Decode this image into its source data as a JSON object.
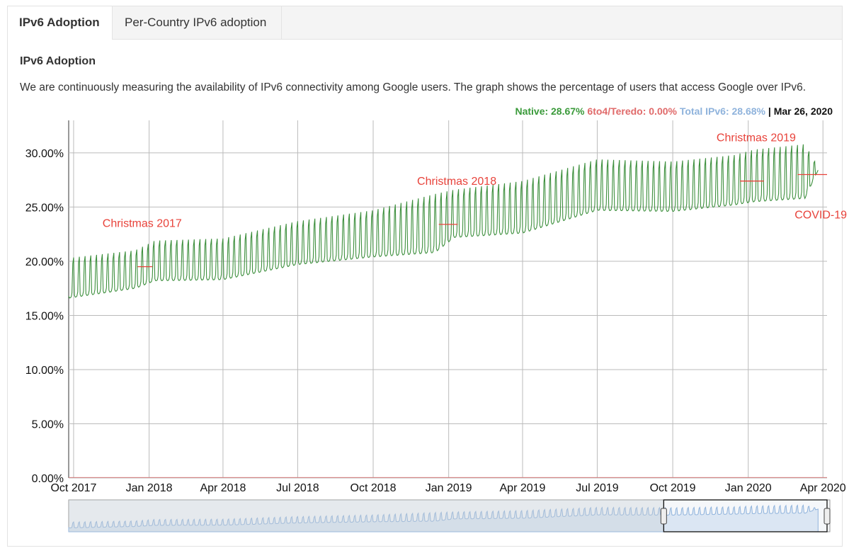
{
  "tabs": [
    {
      "label": "IPv6 Adoption",
      "active": true
    },
    {
      "label": "Per-Country IPv6 adoption",
      "active": false
    }
  ],
  "section_title": "IPv6 Adoption",
  "description": "We are continuously measuring the availability of IPv6 connectivity among Google users. The graph shows the percentage of users that access Google over IPv6.",
  "legend": {
    "native": "Native: 28.67%",
    "teredo": "6to4/Teredo: 0.00%",
    "total": "Total IPv6: 28.68%",
    "separator": "|",
    "date": "Mar 26, 2020"
  },
  "colors": {
    "native_line": "#3d8f3d",
    "annotation": "#e8423a",
    "total_overview": "#8fb3dc",
    "grid": "#bbbbbb"
  },
  "chart_data": {
    "type": "line",
    "title": "",
    "xlabel": "",
    "ylabel": "",
    "x_range": [
      "2017-09-25",
      "2020-04-06"
    ],
    "ylim": [
      0,
      33
    ],
    "y_ticks": [
      0,
      5,
      10,
      15,
      20,
      25,
      30
    ],
    "y_tick_labels": [
      "0.00%",
      "5.00%",
      "10.00%",
      "15.00%",
      "20.00%",
      "25.00%",
      "30.00%"
    ],
    "x_ticks": [
      "2017-10-01",
      "2018-01-01",
      "2018-04-01",
      "2018-07-01",
      "2018-10-01",
      "2019-01-01",
      "2019-04-01",
      "2019-07-01",
      "2019-10-01",
      "2020-01-01",
      "2020-04-01"
    ],
    "x_tick_labels": [
      "Oct 2017",
      "Jan 2018",
      "Apr 2018",
      "Jul 2018",
      "Oct 2018",
      "Jan 2019",
      "Apr 2019",
      "Jul 2019",
      "Oct 2019",
      "Jan 2020",
      "Apr 2020"
    ],
    "grid": true,
    "series": [
      {
        "name": "Native",
        "pattern": "weekly oscillation: weekend peaks above weekday troughs",
        "weekday_trough": [
          {
            "x": "2017-09-25",
            "y": 16.6
          },
          {
            "x": "2017-12-15",
            "y": 17.5
          },
          {
            "x": "2018-01-08",
            "y": 18.2
          },
          {
            "x": "2018-04-01",
            "y": 18.3
          },
          {
            "x": "2018-07-01",
            "y": 19.7
          },
          {
            "x": "2018-10-01",
            "y": 20.4
          },
          {
            "x": "2018-12-15",
            "y": 20.8
          },
          {
            "x": "2019-01-08",
            "y": 22.2
          },
          {
            "x": "2019-04-01",
            "y": 22.6
          },
          {
            "x": "2019-07-01",
            "y": 24.7
          },
          {
            "x": "2019-10-01",
            "y": 24.6
          },
          {
            "x": "2019-12-15",
            "y": 25.2
          },
          {
            "x": "2020-01-08",
            "y": 25.5
          },
          {
            "x": "2020-03-10",
            "y": 25.8
          },
          {
            "x": "2020-03-26",
            "y": 28.4
          }
        ],
        "weekend_peak": [
          {
            "x": "2017-09-25",
            "y": 20.3
          },
          {
            "x": "2017-12-15",
            "y": 21.0
          },
          {
            "x": "2018-01-08",
            "y": 21.9
          },
          {
            "x": "2018-04-01",
            "y": 22.1
          },
          {
            "x": "2018-07-01",
            "y": 23.7
          },
          {
            "x": "2018-10-01",
            "y": 24.7
          },
          {
            "x": "2018-12-15",
            "y": 26.2
          },
          {
            "x": "2019-01-08",
            "y": 26.6
          },
          {
            "x": "2019-04-01",
            "y": 27.4
          },
          {
            "x": "2019-07-01",
            "y": 29.4
          },
          {
            "x": "2019-10-01",
            "y": 29.2
          },
          {
            "x": "2019-12-15",
            "y": 29.8
          },
          {
            "x": "2020-01-08",
            "y": 30.3
          },
          {
            "x": "2020-03-10",
            "y": 30.8
          },
          {
            "x": "2020-03-26",
            "y": 28.7
          }
        ]
      }
    ],
    "annotations": [
      {
        "label": "Christmas 2017",
        "x_start": "2017-12-18",
        "x_end": "2018-01-05",
        "y": 19.5
      },
      {
        "label": "Christmas 2018",
        "x_start": "2018-12-20",
        "x_end": "2019-01-12",
        "y": 23.4
      },
      {
        "label": "Christmas 2019",
        "x_start": "2019-12-22",
        "x_end": "2020-01-20",
        "y": 27.4
      },
      {
        "label": "COVID-19",
        "x_start": "2020-03-01",
        "x_end": "2020-04-06",
        "y": 28.0
      }
    ],
    "legend_position": "top-right"
  },
  "range_selector": {
    "selected_start": "2019-09-20",
    "selected_end": "2020-04-06"
  }
}
